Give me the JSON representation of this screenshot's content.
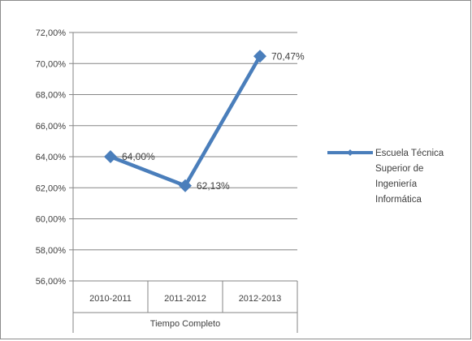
{
  "chart_data": {
    "type": "line",
    "categories": [
      "2010-2011",
      "2011-2012",
      "2012-2013"
    ],
    "group_label": "Tiempo Completo",
    "series": [
      {
        "name": "Escuela Técnica Superior de Ingeniería Informática",
        "name_lines": [
          "Escuela Técnica",
          "Superior de",
          "Ingeniería",
          "Informática"
        ],
        "values": [
          64.0,
          62.13,
          70.47
        ],
        "data_labels": [
          "64,00%",
          "62,13%",
          "70,47%"
        ],
        "color": "#4a7ebb"
      }
    ],
    "y_ticks": [
      "56,00%",
      "58,00%",
      "60,00%",
      "62,00%",
      "64,00%",
      "66,00%",
      "68,00%",
      "70,00%",
      "72,00%"
    ],
    "ylim": [
      56,
      72
    ],
    "y_step": 2,
    "grid": true,
    "legend_position": "right",
    "title": "",
    "xlabel": "",
    "ylabel": ""
  }
}
